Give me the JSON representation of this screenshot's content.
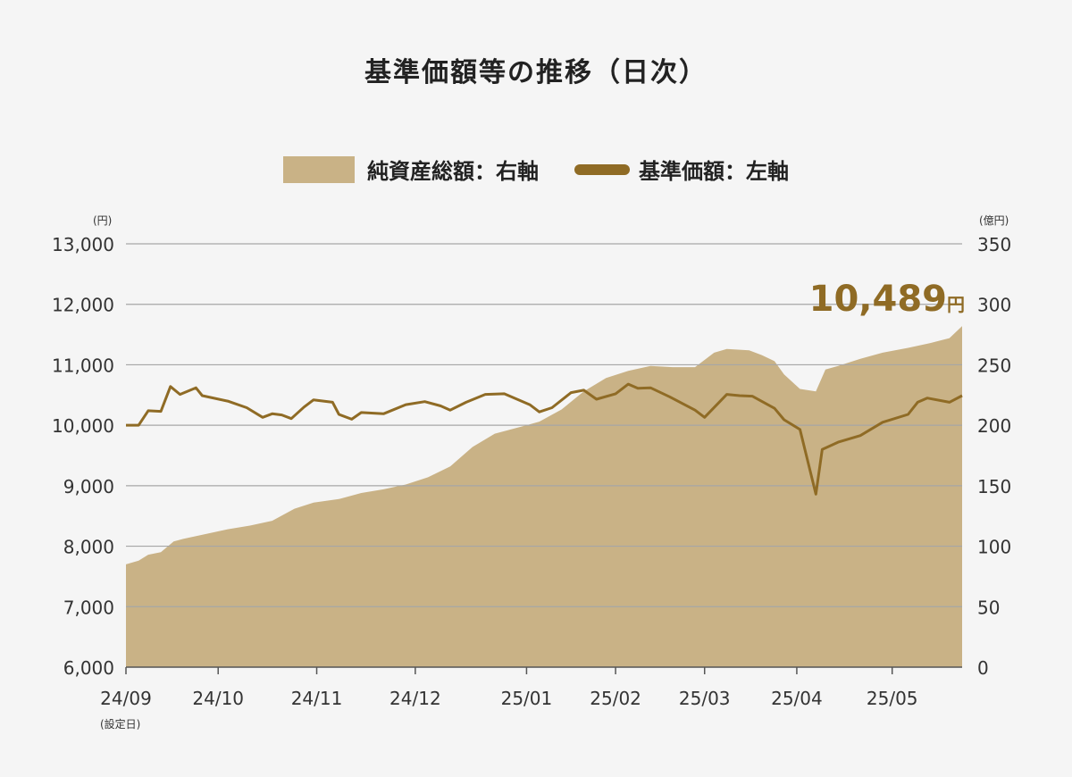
{
  "header": {
    "title": "基準価額等の推移（日次）"
  },
  "legend": {
    "area_label": "純資産総額：右軸",
    "line_label": "基準価額：左軸"
  },
  "units": {
    "left": "(円)",
    "right": "(億円)",
    "first_date_note": "(設定日)"
  },
  "latest": {
    "value": "10,489",
    "unit": "円"
  },
  "colors": {
    "area": "#c9b286",
    "line": "#8f6b25",
    "grid": "#a6a6a6",
    "background": "#f5f5f5"
  },
  "chart_data": {
    "type": "line",
    "title": "基準価額等の推移（日次）",
    "x_tick_labels": [
      "24/09",
      "24/10",
      "24/11",
      "24/12",
      "25/01",
      "25/02",
      "25/03",
      "25/04",
      "25/05"
    ],
    "x_range": [
      "2024-09-02",
      "2025-05-23"
    ],
    "left_axis": {
      "label": "(円)",
      "ticks": [
        "6,000",
        "7,000",
        "8,000",
        "9,000",
        "10,000",
        "11,000",
        "12,000",
        "13,000"
      ],
      "range": [
        6000,
        13000
      ]
    },
    "right_axis": {
      "label": "(億円)",
      "ticks": [
        "0",
        "50",
        "100",
        "150",
        "200",
        "250",
        "300",
        "350"
      ],
      "range": [
        0,
        350
      ]
    },
    "grid": true,
    "legend_position": "top-center",
    "series": [
      {
        "name": "純資産総額：右軸",
        "type": "area",
        "axis": "right",
        "points": [
          [
            "2024-09-02",
            85
          ],
          [
            "2024-09-06",
            88
          ],
          [
            "2024-09-09",
            93
          ],
          [
            "2024-09-13",
            95
          ],
          [
            "2024-09-17",
            104
          ],
          [
            "2024-09-20",
            106
          ],
          [
            "2024-09-27",
            110
          ],
          [
            "2024-10-04",
            114
          ],
          [
            "2024-10-11",
            117
          ],
          [
            "2024-10-18",
            121
          ],
          [
            "2024-10-25",
            131
          ],
          [
            "2024-10-31",
            136
          ],
          [
            "2024-11-08",
            139
          ],
          [
            "2024-11-15",
            144
          ],
          [
            "2024-11-22",
            147
          ],
          [
            "2024-11-29",
            151
          ],
          [
            "2024-12-06",
            157
          ],
          [
            "2024-12-13",
            166
          ],
          [
            "2024-12-20",
            182
          ],
          [
            "2024-12-27",
            193
          ],
          [
            "2025-01-06",
            200
          ],
          [
            "2025-01-10",
            203
          ],
          [
            "2025-01-17",
            213
          ],
          [
            "2025-01-24",
            228
          ],
          [
            "2025-01-31",
            239
          ],
          [
            "2025-02-07",
            245
          ],
          [
            "2025-02-14",
            249
          ],
          [
            "2025-02-21",
            248
          ],
          [
            "2025-02-28",
            248
          ],
          [
            "2025-03-06",
            260
          ],
          [
            "2025-03-10",
            263
          ],
          [
            "2025-03-17",
            262
          ],
          [
            "2025-03-21",
            258
          ],
          [
            "2025-03-25",
            253
          ],
          [
            "2025-03-28",
            242
          ],
          [
            "2025-04-02",
            230
          ],
          [
            "2025-04-07",
            228
          ],
          [
            "2025-04-10",
            246
          ],
          [
            "2025-04-14",
            249
          ],
          [
            "2025-04-21",
            255
          ],
          [
            "2025-04-28",
            260
          ],
          [
            "2025-05-06",
            264
          ],
          [
            "2025-05-13",
            268
          ],
          [
            "2025-05-19",
            272
          ],
          [
            "2025-05-23",
            282
          ]
        ]
      },
      {
        "name": "基準価額：左軸",
        "type": "line",
        "axis": "left",
        "points": [
          [
            "2024-09-02",
            10000
          ],
          [
            "2024-09-06",
            10000
          ],
          [
            "2024-09-09",
            10240
          ],
          [
            "2024-09-13",
            10230
          ],
          [
            "2024-09-16",
            10640
          ],
          [
            "2024-09-19",
            10510
          ],
          [
            "2024-09-24",
            10620
          ],
          [
            "2024-09-26",
            10490
          ],
          [
            "2024-10-04",
            10400
          ],
          [
            "2024-10-10",
            10290
          ],
          [
            "2024-10-15",
            10130
          ],
          [
            "2024-10-18",
            10190
          ],
          [
            "2024-10-21",
            10170
          ],
          [
            "2024-10-24",
            10110
          ],
          [
            "2024-10-28",
            10300
          ],
          [
            "2024-10-31",
            10420
          ],
          [
            "2024-11-06",
            10380
          ],
          [
            "2024-11-08",
            10180
          ],
          [
            "2024-11-12",
            10100
          ],
          [
            "2024-11-15",
            10210
          ],
          [
            "2024-11-22",
            10190
          ],
          [
            "2024-11-29",
            10340
          ],
          [
            "2024-12-05",
            10390
          ],
          [
            "2024-12-10",
            10320
          ],
          [
            "2024-12-13",
            10250
          ],
          [
            "2024-12-18",
            10380
          ],
          [
            "2024-12-24",
            10510
          ],
          [
            "2024-12-30",
            10520
          ],
          [
            "2025-01-07",
            10340
          ],
          [
            "2025-01-10",
            10220
          ],
          [
            "2025-01-14",
            10290
          ],
          [
            "2025-01-20",
            10540
          ],
          [
            "2025-01-24",
            10580
          ],
          [
            "2025-01-28",
            10430
          ],
          [
            "2025-02-03",
            10520
          ],
          [
            "2025-02-07",
            10680
          ],
          [
            "2025-02-10",
            10610
          ],
          [
            "2025-02-14",
            10620
          ],
          [
            "2025-02-20",
            10470
          ],
          [
            "2025-02-28",
            10250
          ],
          [
            "2025-03-03",
            10130
          ],
          [
            "2025-03-10",
            10510
          ],
          [
            "2025-03-14",
            10490
          ],
          [
            "2025-03-18",
            10480
          ],
          [
            "2025-03-25",
            10280
          ],
          [
            "2025-03-28",
            10090
          ],
          [
            "2025-04-02",
            9930
          ],
          [
            "2025-04-07",
            8860
          ],
          [
            "2025-04-09",
            9600
          ],
          [
            "2025-04-14",
            9720
          ],
          [
            "2025-04-21",
            9830
          ],
          [
            "2025-04-28",
            10050
          ],
          [
            "2025-05-06",
            10180
          ],
          [
            "2025-05-09",
            10380
          ],
          [
            "2025-05-12",
            10450
          ],
          [
            "2025-05-19",
            10380
          ],
          [
            "2025-05-23",
            10489
          ]
        ]
      }
    ]
  }
}
